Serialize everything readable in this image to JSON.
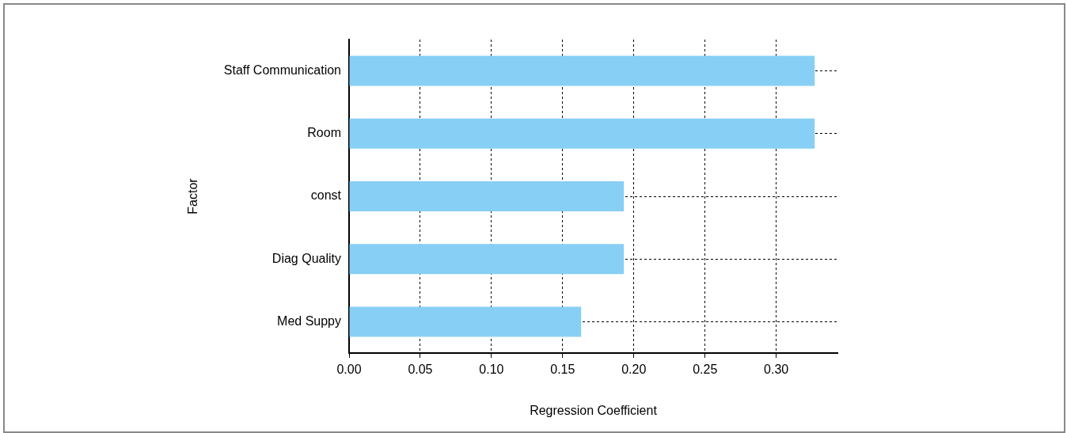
{
  "chart_data": {
    "type": "bar",
    "orientation": "horizontal",
    "xlabel": "Regression Coefficient",
    "ylabel": "Factor",
    "categories": [
      "Staff Communication",
      "Room",
      "const",
      "Diag Quality",
      "Med Suppy"
    ],
    "values": [
      0.327,
      0.327,
      0.193,
      0.193,
      0.163
    ],
    "color": "#87cff5",
    "xlim": [
      0,
      0.343
    ],
    "xticks": [
      {
        "value": 0,
        "label": "0.00"
      },
      {
        "value": 0.05,
        "label": "0.05"
      },
      {
        "value": 0.1,
        "label": "0.10"
      },
      {
        "value": 0.15,
        "label": "0.15"
      },
      {
        "value": 0.2,
        "label": "0.20"
      },
      {
        "value": 0.25,
        "label": "0.25"
      },
      {
        "value": 0.3,
        "label": "0.30"
      }
    ],
    "grid": true,
    "legend": false
  }
}
